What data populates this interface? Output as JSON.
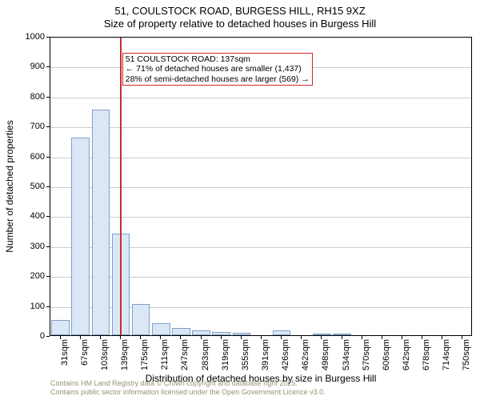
{
  "title": "51, COULSTOCK ROAD, BURGESS HILL, RH15 9XZ",
  "subtitle": "Size of property relative to detached houses in Burgess Hill",
  "chart": {
    "type": "histogram",
    "ylabel": "Number of detached properties",
    "xlabel": "Distribution of detached houses by size in Burgess Hill",
    "ylim": [
      0,
      1000
    ],
    "ytick_step": 100,
    "yticks": [
      0,
      100,
      200,
      300,
      400,
      500,
      600,
      700,
      800,
      900,
      1000
    ],
    "categories": [
      "31sqm",
      "67sqm",
      "103sqm",
      "139sqm",
      "175sqm",
      "211sqm",
      "247sqm",
      "283sqm",
      "319sqm",
      "355sqm",
      "391sqm",
      "426sqm",
      "462sqm",
      "498sqm",
      "534sqm",
      "570sqm",
      "606sqm",
      "642sqm",
      "678sqm",
      "714sqm",
      "750sqm"
    ],
    "values": [
      52,
      660,
      755,
      340,
      105,
      40,
      25,
      15,
      10,
      8,
      0,
      15,
      0,
      5,
      3,
      0,
      0,
      0,
      0,
      0,
      0
    ],
    "bar_fill": "#dbe7f6",
    "bar_border": "#7f9fc4",
    "grid_color": "#cccccc",
    "background_color": "#ffffff",
    "bar_width_ratio": 0.9,
    "reference": {
      "sqm": 137,
      "x_index_position": 2.95,
      "color": "#c62f2f",
      "box": {
        "line1": "← 71% of detached houses are smaller (1,437)",
        "line2": "28% of semi-detached houses are larger (569) →",
        "heading": "51 COULSTOCK ROAD: 137sqm"
      }
    }
  },
  "footer": {
    "line1": "Contains HM Land Registry data © Crown copyright and database right 2025.",
    "line2": "Contains public sector information licensed under the Open Government Licence v3.0."
  },
  "label_fontsize": 12,
  "tick_fontsize": 11,
  "title_fontsize": 13
}
